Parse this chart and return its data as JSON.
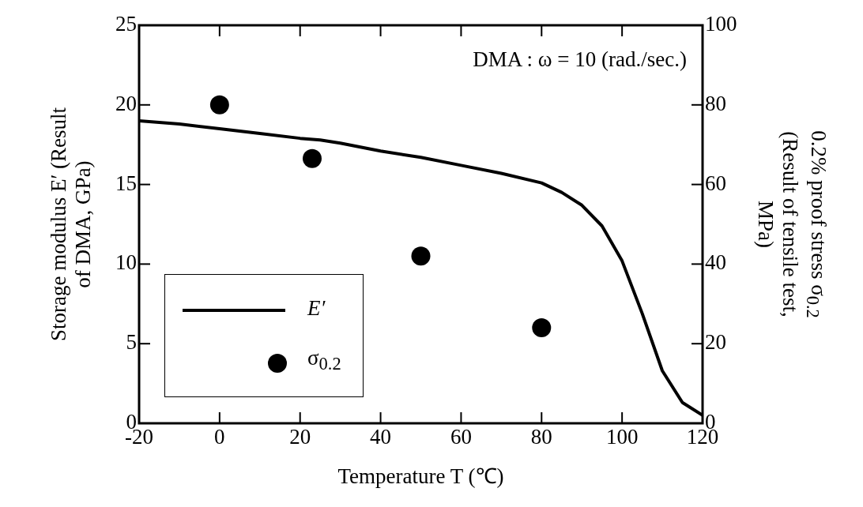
{
  "chart_data": {
    "type": "line",
    "xlabel": "Temperature  T  (℃)",
    "ylabel": "Storage modulus  E′ (Result of DMA, GPa)",
    "y2label": "0.2% proof stress  σ$_{0.2}$ (Result of tensile test,  MPa)",
    "annotations": [
      "DMA : ω = 10 (rad./sec.)"
    ],
    "xlim": [
      -20,
      120
    ],
    "xticks": [
      -20,
      0,
      20,
      40,
      60,
      80,
      100,
      120
    ],
    "ylim": [
      0,
      25
    ],
    "yticks": [
      0,
      5,
      10,
      15,
      20,
      25
    ],
    "y2lim": [
      0,
      100
    ],
    "y2ticks": [
      0,
      20,
      40,
      60,
      80,
      100
    ],
    "legend": "bottom left",
    "series": [
      {
        "name": "E′",
        "color": "#000000",
        "marker": "none",
        "x": [
          -20,
          -10,
          0,
          10,
          20,
          25,
          30,
          40,
          50,
          60,
          70,
          80,
          85,
          90,
          95,
          100,
          105,
          110,
          115,
          120
        ],
        "values": [
          19.0,
          18.8,
          18.5,
          18.2,
          17.9,
          17.8,
          17.6,
          17.1,
          16.7,
          16.2,
          15.7,
          15.1,
          14.5,
          13.7,
          12.4,
          10.2,
          6.9,
          3.3,
          1.3,
          0.5
        ]
      },
      {
        "name": "σ$_{0.2}$",
        "type": "scatter",
        "axis": "y2",
        "color": "#000000",
        "marker": "circle",
        "x": [
          0,
          23,
          50,
          80
        ],
        "values": [
          80,
          66.5,
          42,
          24
        ]
      }
    ]
  }
}
